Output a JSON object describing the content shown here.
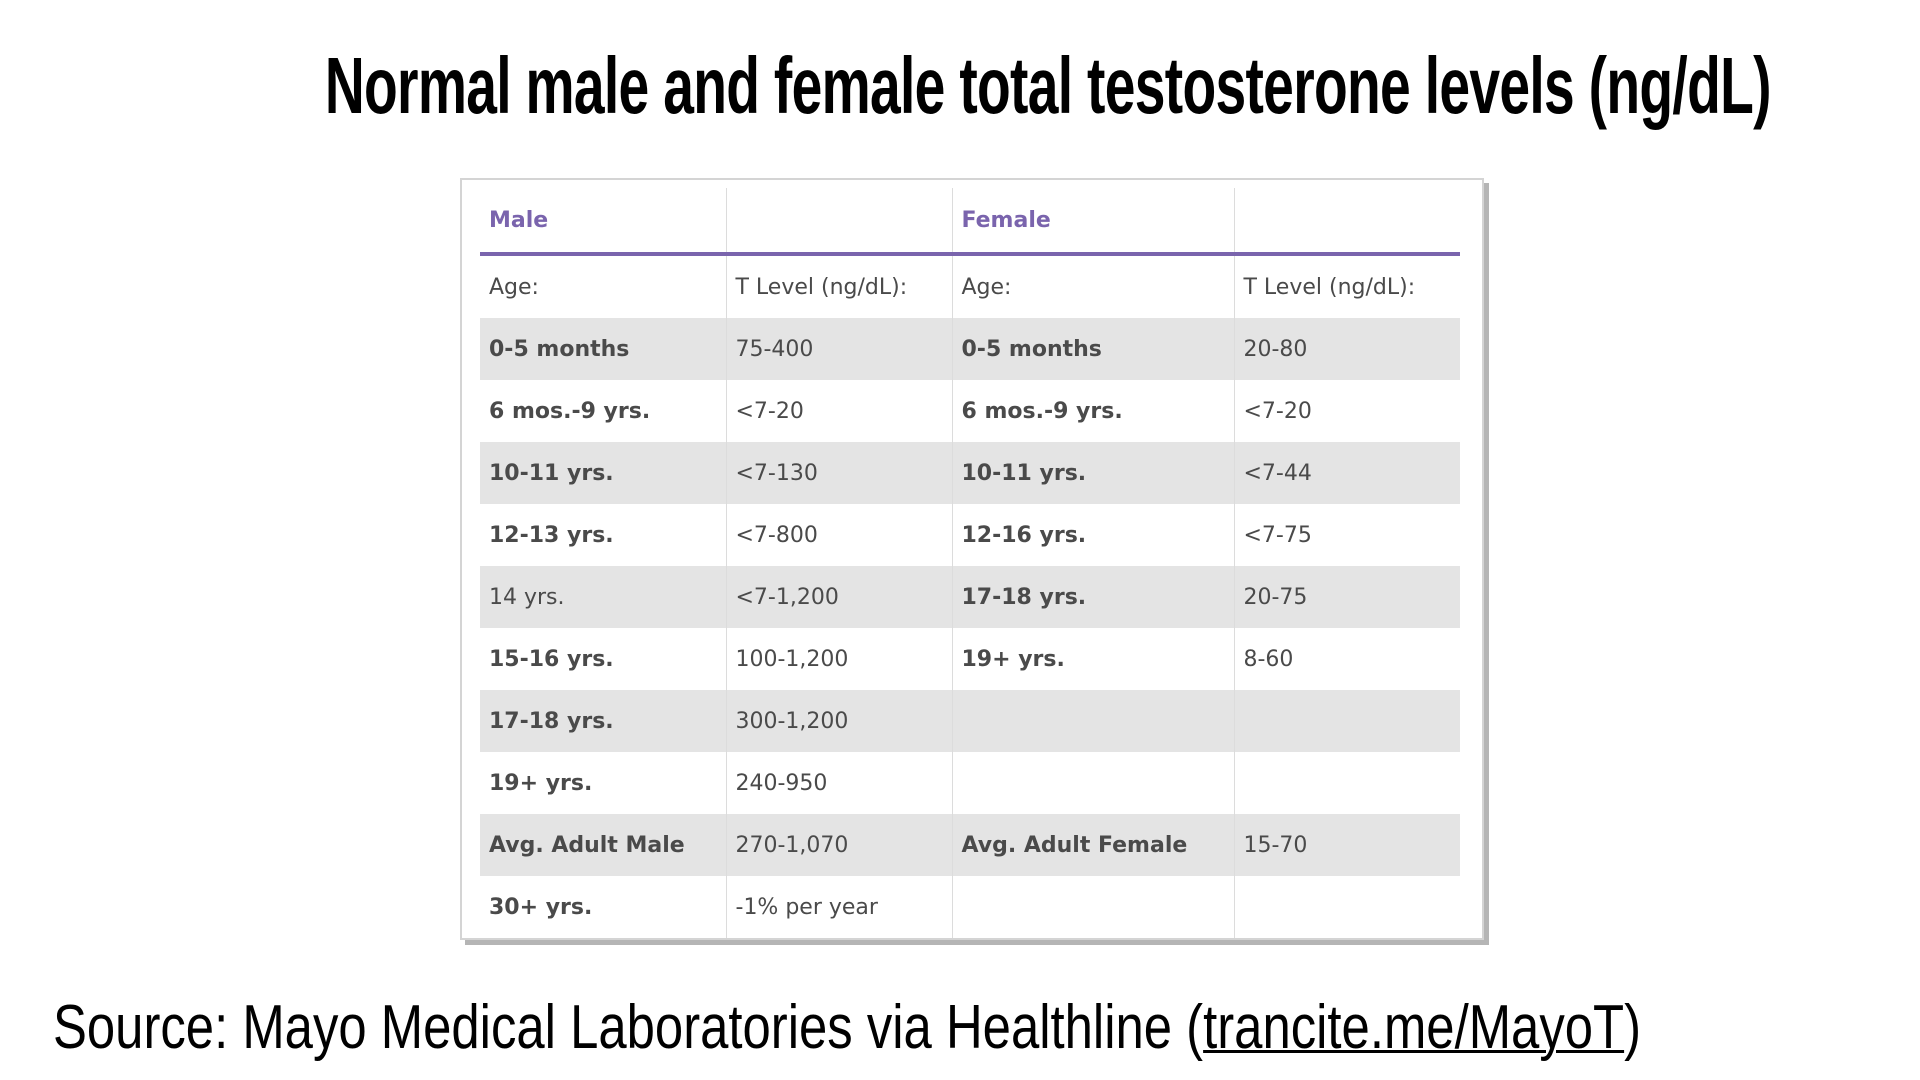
{
  "title": "Normal male and female total testosterone levels (ng/dL)",
  "table": {
    "header": [
      "Male",
      null,
      "Female",
      null
    ],
    "rows": [
      [
        "Age:",
        "T Level (ng/dL):",
        "Age:",
        "T Level (ng/dL):"
      ],
      [
        "0-5 months",
        "75-400",
        "0-5 months",
        "20-80"
      ],
      [
        "6 mos.-9 yrs.",
        "<7-20",
        "6 mos.-9 yrs.",
        "<7-20"
      ],
      [
        "10-11 yrs.",
        "<7-130",
        "10-11 yrs.",
        "<7-44"
      ],
      [
        "12-13 yrs.",
        "<7-800",
        "12-16 yrs.",
        "<7-75"
      ],
      [
        "14 yrs.",
        "<7-1,200",
        "17-18 yrs.",
        "20-75"
      ],
      [
        "15-16 yrs.",
        "100-1,200",
        "19+ yrs.",
        "8-60"
      ],
      [
        "17-18 yrs.",
        "300-1,200",
        null,
        null
      ],
      [
        "19+ yrs.",
        "240-950",
        null,
        null
      ],
      [
        "Avg. Adult Male",
        "270-1,070",
        "Avg. Adult Female",
        "15-70"
      ],
      [
        "30+ yrs.",
        "-1% per year",
        null,
        null
      ]
    ]
  },
  "source": {
    "prefix": "Source: Mayo Medical Laboratories via Healthline (",
    "link": "trancite.me/MayoT",
    "suffix": ")"
  }
}
